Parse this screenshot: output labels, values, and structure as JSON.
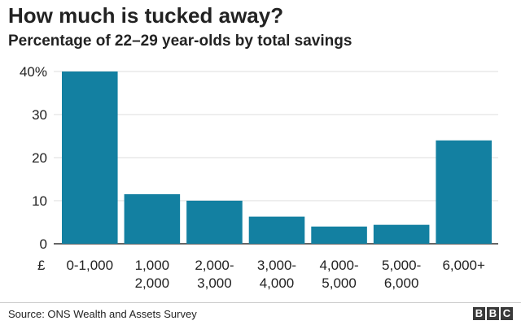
{
  "chart_data": {
    "type": "bar",
    "title": "How much is tucked away?",
    "subtitle": "Percentage of 22–29 year-olds by total savings",
    "currency_symbol": "£",
    "categories": [
      [
        "0-1,000"
      ],
      [
        "1,000",
        "2,000"
      ],
      [
        "2,000-",
        "3,000"
      ],
      [
        "3,000-",
        "4,000"
      ],
      [
        "4,000-",
        "5,000"
      ],
      [
        "5,000-",
        "6,000"
      ],
      [
        "6,000+"
      ]
    ],
    "values": [
      40,
      11.5,
      10,
      6.3,
      4,
      4.4,
      24
    ],
    "yticks": [
      "0",
      "10",
      "20",
      "30",
      "40%"
    ],
    "ytick_values": [
      0,
      10,
      20,
      30,
      40
    ],
    "ylim": [
      0,
      40
    ],
    "grid": true,
    "bar_color": "#1380a1"
  },
  "footer": {
    "source": "Source: ONS Wealth and Assets Survey",
    "logo_letters": [
      "B",
      "B",
      "C"
    ]
  }
}
